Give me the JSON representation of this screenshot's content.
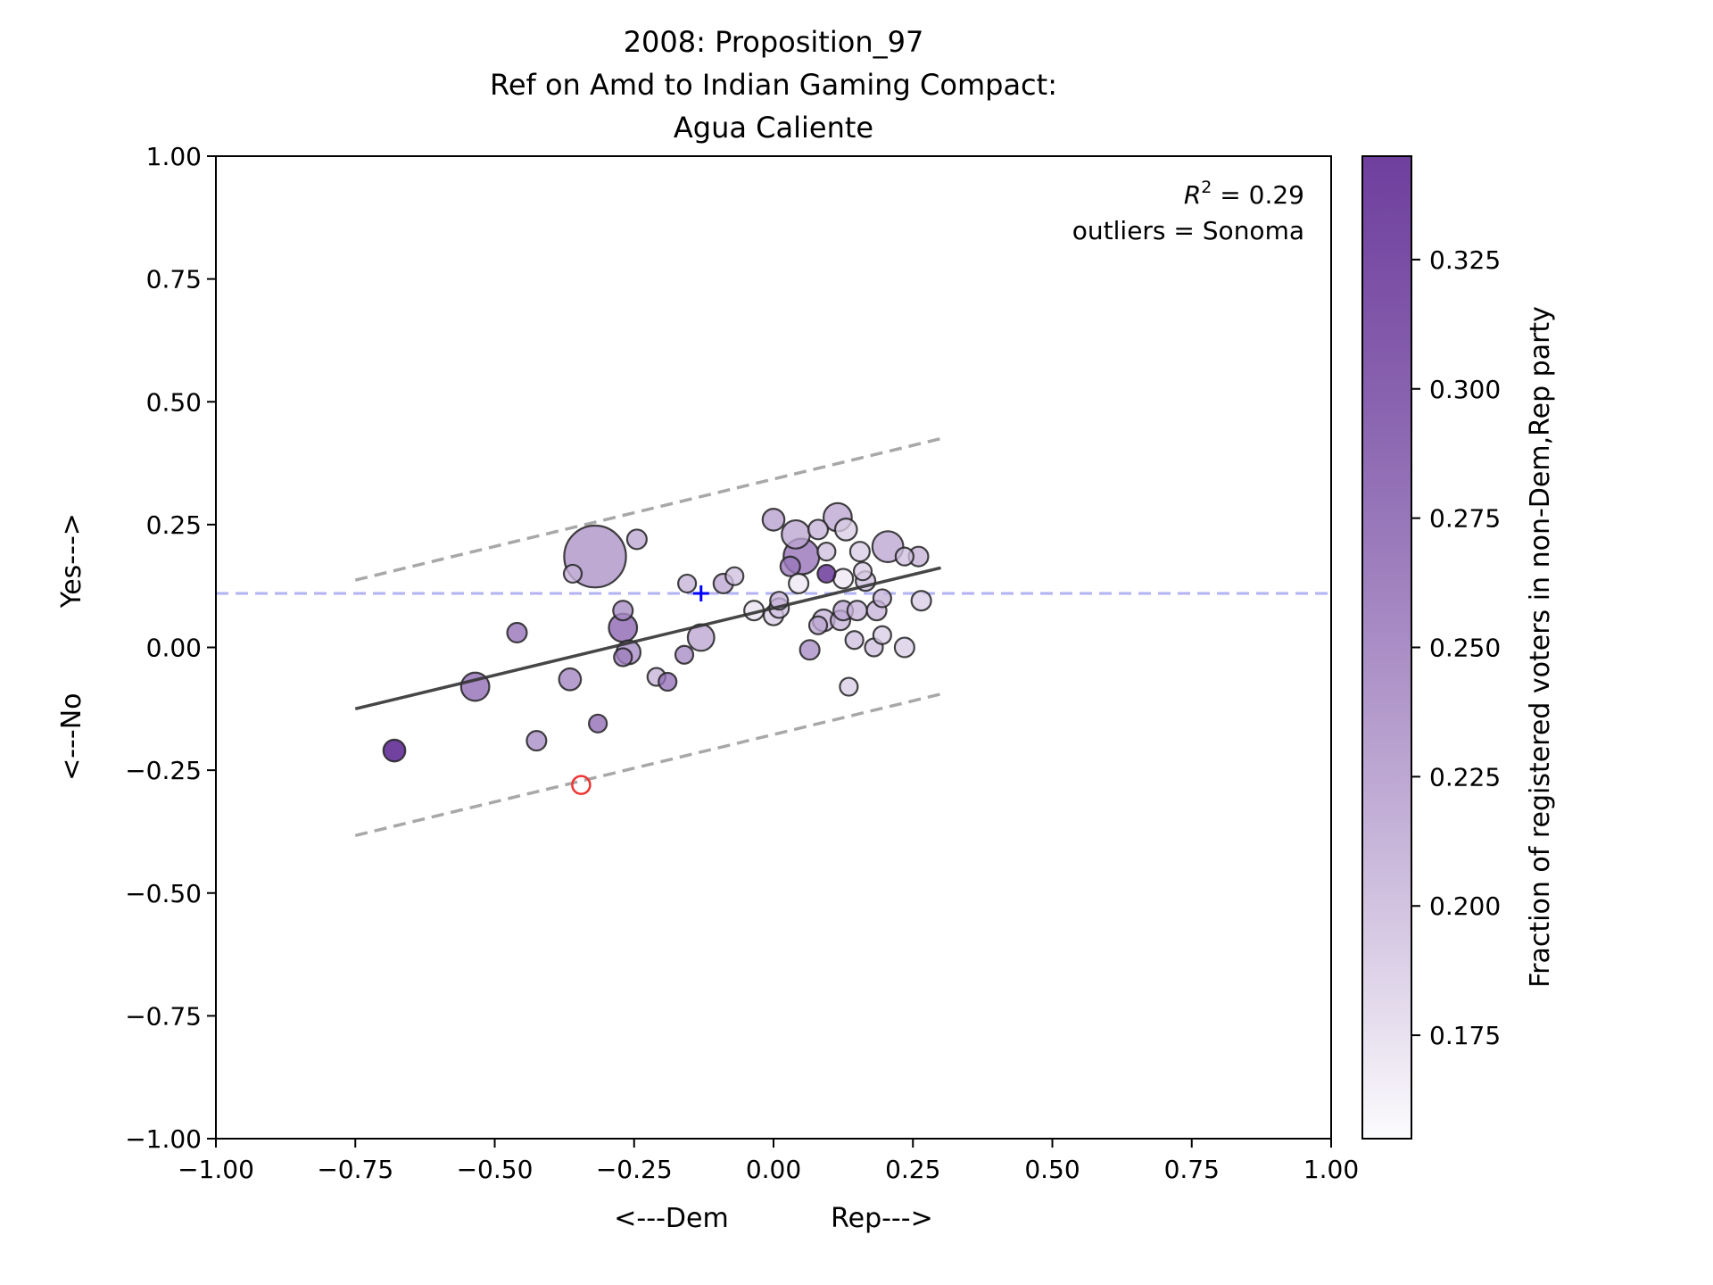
{
  "chart_data": {
    "type": "scatter",
    "title_lines": [
      "2008: Proposition_97",
      "Ref on Amd to Indian Gaming Compact:",
      "Agua Caliente"
    ],
    "xlabel": "<---Dem            Rep--->",
    "ylabel": "<---No          Yes--->",
    "xlim": [
      -1.0,
      1.0
    ],
    "ylim": [
      -1.0,
      1.0
    ],
    "xticks": [
      -1.0,
      -0.75,
      -0.5,
      -0.25,
      0.0,
      0.25,
      0.5,
      0.75,
      1.0
    ],
    "yticks": [
      -1.0,
      -0.75,
      -0.5,
      -0.25,
      0.0,
      0.25,
      0.5,
      0.75,
      1.0
    ],
    "xtick_labels": [
      "−1.00",
      "−0.75",
      "−0.50",
      "−0.25",
      "0.00",
      "0.25",
      "0.50",
      "0.75",
      "1.00"
    ],
    "ytick_labels": [
      "−1.00",
      "−0.75",
      "−0.50",
      "−0.25",
      "0.00",
      "0.25",
      "0.50",
      "0.75",
      "1.00"
    ],
    "grid": false,
    "annotation": {
      "r2_prefix": "R",
      "r2_sup": "2",
      "r2_value": " = 0.29",
      "outliers": "outliers = Sonoma"
    },
    "colorbar": {
      "label": "Fraction of registered voters in non-Dem,Rep party",
      "range": [
        0.155,
        0.345
      ],
      "ticks": [
        0.175,
        0.2,
        0.225,
        0.25,
        0.275,
        0.3,
        0.325
      ],
      "tick_labels": [
        "0.175",
        "0.200",
        "0.225",
        "0.250",
        "0.275",
        "0.300",
        "0.325"
      ],
      "color_low": "#fcfbfd",
      "color_high": "#3f007d"
    },
    "fit_line": {
      "x": [
        -0.75,
        0.3
      ],
      "y": [
        -0.125,
        0.162
      ]
    },
    "band_upper": {
      "x": [
        -0.75,
        0.3
      ],
      "y": [
        0.137,
        0.425
      ]
    },
    "band_lower": {
      "x": [
        -0.75,
        0.3
      ],
      "y": [
        -0.383,
        -0.095
      ]
    },
    "hline": {
      "y": 0.11,
      "color": "#8080ee"
    },
    "mean_marker": {
      "x": -0.13,
      "y": 0.11,
      "color": "#0000ff"
    },
    "outlier_points": [
      {
        "x": -0.345,
        "y": -0.28,
        "size": 1,
        "color": "#ee3333"
      }
    ],
    "points": [
      {
        "x": -0.32,
        "y": 0.185,
        "size": 12,
        "c": 0.235
      },
      {
        "x": -0.68,
        "y": -0.21,
        "size": 1.5,
        "c": 0.335
      },
      {
        "x": -0.535,
        "y": -0.08,
        "size": 2.5,
        "c": 0.265
      },
      {
        "x": -0.46,
        "y": 0.03,
        "size": 1.2,
        "c": 0.26
      },
      {
        "x": -0.425,
        "y": -0.19,
        "size": 1.2,
        "c": 0.24
      },
      {
        "x": -0.365,
        "y": -0.065,
        "size": 1.5,
        "c": 0.245
      },
      {
        "x": -0.36,
        "y": 0.15,
        "size": 1.0,
        "c": 0.21
      },
      {
        "x": -0.315,
        "y": -0.155,
        "size": 1.0,
        "c": 0.265
      },
      {
        "x": -0.245,
        "y": 0.22,
        "size": 1.2,
        "c": 0.22
      },
      {
        "x": -0.27,
        "y": 0.075,
        "size": 1.2,
        "c": 0.24
      },
      {
        "x": -0.27,
        "y": 0.04,
        "size": 2.5,
        "c": 0.27
      },
      {
        "x": -0.26,
        "y": -0.01,
        "size": 1.8,
        "c": 0.24
      },
      {
        "x": -0.27,
        "y": -0.02,
        "size": 1.0,
        "c": 0.25
      },
      {
        "x": -0.21,
        "y": -0.06,
        "size": 1.0,
        "c": 0.21
      },
      {
        "x": -0.19,
        "y": -0.07,
        "size": 1.0,
        "c": 0.26
      },
      {
        "x": -0.16,
        "y": -0.015,
        "size": 1.0,
        "c": 0.24
      },
      {
        "x": -0.155,
        "y": 0.13,
        "size": 1.0,
        "c": 0.21
      },
      {
        "x": -0.13,
        "y": 0.02,
        "size": 2.2,
        "c": 0.22
      },
      {
        "x": -0.09,
        "y": 0.13,
        "size": 1.2,
        "c": 0.22
      },
      {
        "x": -0.07,
        "y": 0.145,
        "size": 1.0,
        "c": 0.2
      },
      {
        "x": -0.035,
        "y": 0.075,
        "size": 1.2,
        "c": 0.175
      },
      {
        "x": 0.0,
        "y": 0.26,
        "size": 1.5,
        "c": 0.225
      },
      {
        "x": 0.0,
        "y": 0.065,
        "size": 1.2,
        "c": 0.19
      },
      {
        "x": 0.01,
        "y": 0.08,
        "size": 1.2,
        "c": 0.2
      },
      {
        "x": 0.01,
        "y": 0.095,
        "size": 1.0,
        "c": 0.21
      },
      {
        "x": 0.03,
        "y": 0.165,
        "size": 1.2,
        "c": 0.255
      },
      {
        "x": 0.04,
        "y": 0.23,
        "size": 2.5,
        "c": 0.22
      },
      {
        "x": 0.045,
        "y": 0.13,
        "size": 1.2,
        "c": 0.17
      },
      {
        "x": 0.05,
        "y": 0.185,
        "size": 4.0,
        "c": 0.26
      },
      {
        "x": 0.065,
        "y": -0.005,
        "size": 1.2,
        "c": 0.24
      },
      {
        "x": 0.08,
        "y": 0.24,
        "size": 1.2,
        "c": 0.21
      },
      {
        "x": 0.08,
        "y": 0.045,
        "size": 1.0,
        "c": 0.22
      },
      {
        "x": 0.09,
        "y": 0.055,
        "size": 1.5,
        "c": 0.21
      },
      {
        "x": 0.095,
        "y": 0.15,
        "size": 1.0,
        "c": 0.315
      },
      {
        "x": 0.095,
        "y": 0.195,
        "size": 1.0,
        "c": 0.2
      },
      {
        "x": 0.115,
        "y": 0.265,
        "size": 2.5,
        "c": 0.22
      },
      {
        "x": 0.12,
        "y": 0.055,
        "size": 1.2,
        "c": 0.21
      },
      {
        "x": 0.125,
        "y": 0.075,
        "size": 1.2,
        "c": 0.22
      },
      {
        "x": 0.125,
        "y": 0.14,
        "size": 1.2,
        "c": 0.17
      },
      {
        "x": 0.13,
        "y": 0.24,
        "size": 1.5,
        "c": 0.19
      },
      {
        "x": 0.135,
        "y": -0.08,
        "size": 1.0,
        "c": 0.19
      },
      {
        "x": 0.145,
        "y": 0.015,
        "size": 1.0,
        "c": 0.2
      },
      {
        "x": 0.15,
        "y": 0.075,
        "size": 1.2,
        "c": 0.21
      },
      {
        "x": 0.155,
        "y": 0.195,
        "size": 1.2,
        "c": 0.19
      },
      {
        "x": 0.16,
        "y": 0.155,
        "size": 1.0,
        "c": 0.19
      },
      {
        "x": 0.165,
        "y": 0.135,
        "size": 1.2,
        "c": 0.2
      },
      {
        "x": 0.18,
        "y": 0.0,
        "size": 1.0,
        "c": 0.2
      },
      {
        "x": 0.185,
        "y": 0.075,
        "size": 1.2,
        "c": 0.21
      },
      {
        "x": 0.195,
        "y": 0.025,
        "size": 1.0,
        "c": 0.19
      },
      {
        "x": 0.195,
        "y": 0.1,
        "size": 1.0,
        "c": 0.21
      },
      {
        "x": 0.205,
        "y": 0.205,
        "size": 3.0,
        "c": 0.22
      },
      {
        "x": 0.235,
        "y": 0.185,
        "size": 1.0,
        "c": 0.2
      },
      {
        "x": 0.235,
        "y": 0.0,
        "size": 1.2,
        "c": 0.19
      },
      {
        "x": 0.26,
        "y": 0.185,
        "size": 1.2,
        "c": 0.21
      },
      {
        "x": 0.265,
        "y": 0.095,
        "size": 1.2,
        "c": 0.19
      }
    ]
  }
}
